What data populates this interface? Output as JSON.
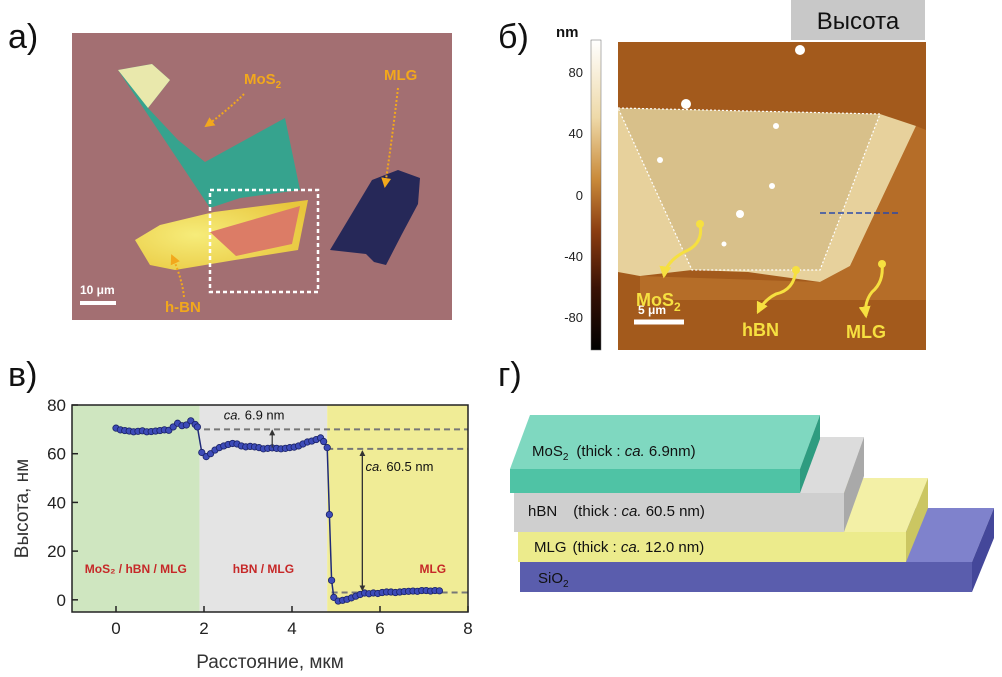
{
  "panels": {
    "a": {
      "letter": "а)",
      "labels": {
        "mos2": "MoS",
        "mos2_sub": "2",
        "mlg": "MLG",
        "hbn": "h-BN",
        "scale": "10 μm"
      }
    },
    "b": {
      "letter": "б)",
      "title": "Высота",
      "unit": "nm",
      "colorbar_ticks": [
        "80",
        "40",
        "0",
        "-40",
        "-80"
      ],
      "labels": {
        "mos2": "MoS",
        "mos2_sub": "2",
        "hbn": "hBN",
        "mlg": "MLG",
        "scale": "5 μm"
      }
    },
    "c": {
      "letter": "в)"
    },
    "d": {
      "letter": "г)"
    }
  },
  "chart_data": {
    "type": "line",
    "xlabel": "Расстояние, мкм",
    "ylabel": "Высота, нм",
    "xlim": [
      -1,
      8
    ],
    "ylim": [
      -5,
      80
    ],
    "xticks": [
      0,
      2,
      4,
      6,
      8
    ],
    "yticks": [
      0,
      20,
      40,
      60,
      80
    ],
    "regions": [
      {
        "label": "MoS₂ / hBN / MLG",
        "x0": -1,
        "x1": 1.9,
        "color": "#cfe6c0"
      },
      {
        "label": "hBN / MLG",
        "x0": 1.9,
        "x1": 4.8,
        "color": "#e4e4e4"
      },
      {
        "label": "MLG",
        "x0": 4.8,
        "x1": 8,
        "color": "#f0ec96"
      }
    ],
    "reference_lines": [
      70,
      62,
      3
    ],
    "annotations": [
      {
        "prefix": "ca.",
        "text": " 6.9 nm"
      },
      {
        "prefix": "ca.",
        "text": " 60.5 nm"
      }
    ],
    "series": [
      {
        "name": "profile",
        "x": [
          0.0,
          0.1,
          0.2,
          0.3,
          0.4,
          0.5,
          0.6,
          0.7,
          0.8,
          0.9,
          1.0,
          1.1,
          1.2,
          1.3,
          1.4,
          1.5,
          1.6,
          1.7,
          1.8,
          1.85,
          1.95,
          2.05,
          2.15,
          2.25,
          2.35,
          2.45,
          2.55,
          2.65,
          2.75,
          2.85,
          2.95,
          3.05,
          3.15,
          3.25,
          3.35,
          3.45,
          3.55,
          3.65,
          3.75,
          3.85,
          3.95,
          4.05,
          4.15,
          4.25,
          4.35,
          4.45,
          4.55,
          4.65,
          4.72,
          4.8,
          4.85,
          4.9,
          4.95,
          5.05,
          5.15,
          5.25,
          5.35,
          5.45,
          5.55,
          5.65,
          5.75,
          5.85,
          5.95,
          6.05,
          6.15,
          6.25,
          6.35,
          6.45,
          6.55,
          6.65,
          6.75,
          6.85,
          6.95,
          7.05,
          7.15,
          7.25,
          7.35
        ],
        "y": [
          70.5,
          69.8,
          69.5,
          69.3,
          69.0,
          69.2,
          69.4,
          69.0,
          69.1,
          69.3,
          69.5,
          69.8,
          69.6,
          71.0,
          72.5,
          71.5,
          71.8,
          73.5,
          72.0,
          71.0,
          60.5,
          58.8,
          60.0,
          61.5,
          62.5,
          63.2,
          63.8,
          64.2,
          64.0,
          63.2,
          62.8,
          63.0,
          62.8,
          62.5,
          62.0,
          62.2,
          62.4,
          62.2,
          62.0,
          62.2,
          62.5,
          62.7,
          63.2,
          64.0,
          64.8,
          65.2,
          65.8,
          66.5,
          65.0,
          62.5,
          35.0,
          8.0,
          1.0,
          -0.5,
          -0.2,
          0.2,
          0.8,
          1.5,
          2.2,
          2.8,
          2.5,
          2.8,
          2.6,
          3.0,
          3.2,
          3.2,
          3.0,
          3.2,
          3.4,
          3.5,
          3.6,
          3.5,
          3.8,
          3.8,
          3.6,
          3.8,
          3.7
        ]
      }
    ]
  },
  "schematic": {
    "layers": [
      {
        "label": "MoS",
        "sub": "2",
        "desc": "(thick : ",
        "ital": "ca.",
        "val": " 6.9nm)"
      },
      {
        "label": "hBN",
        "sub": "",
        "desc": "(thick : ",
        "ital": "ca.",
        "val": " 60.5 nm)"
      },
      {
        "label": "MLG",
        "sub": "",
        "desc": "(thick : ",
        "ital": "ca.",
        "val": " 12.0 nm)"
      },
      {
        "label": "SiO",
        "sub": "2",
        "desc": "",
        "ital": "",
        "val": ""
      }
    ]
  }
}
